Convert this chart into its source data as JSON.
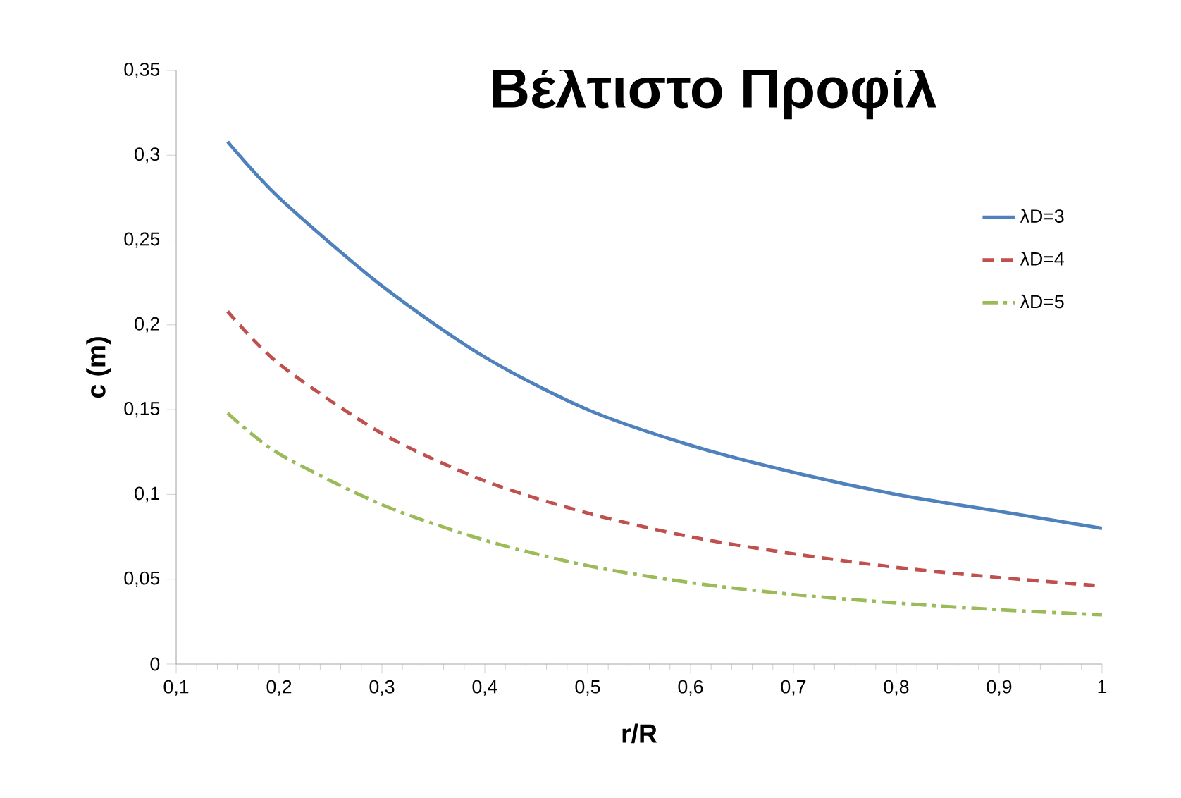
{
  "chart_data": {
    "type": "line",
    "title": "Βέλτιστο Προφίλ",
    "xlabel": "r/R",
    "ylabel": "c (m)",
    "x": [
      0.15,
      0.2,
      0.3,
      0.4,
      0.5,
      0.6,
      0.7,
      0.8,
      0.9,
      1
    ],
    "series": [
      {
        "name": "λD=3",
        "color": "#4f81bd",
        "line_style": "solid",
        "values": [
          0.308,
          0.275,
          0.223,
          0.181,
          0.15,
          0.129,
          0.113,
          0.1,
          0.09,
          0.08
        ]
      },
      {
        "name": "λD=4",
        "color": "#c0504d",
        "line_style": "dashed",
        "values": [
          0.208,
          0.177,
          0.136,
          0.108,
          0.089,
          0.075,
          0.065,
          0.057,
          0.051,
          0.046
        ]
      },
      {
        "name": "λD=5",
        "color": "#9bbb59",
        "line_style": "dashdot",
        "values": [
          0.148,
          0.124,
          0.094,
          0.073,
          0.058,
          0.048,
          0.041,
          0.036,
          0.032,
          0.029
        ]
      }
    ],
    "xlim": [
      0.1,
      1
    ],
    "ylim": [
      0,
      0.35
    ],
    "xticks": [
      {
        "value": 0.1,
        "label": "0,1"
      },
      {
        "value": 0.2,
        "label": "0,2"
      },
      {
        "value": 0.3,
        "label": "0,3"
      },
      {
        "value": 0.4,
        "label": "0,4"
      },
      {
        "value": 0.5,
        "label": "0,5"
      },
      {
        "value": 0.6,
        "label": "0,6"
      },
      {
        "value": 0.7,
        "label": "0,7"
      },
      {
        "value": 0.8,
        "label": "0,8"
      },
      {
        "value": 0.9,
        "label": "0,9"
      },
      1
    ],
    "yticks": [
      0,
      {
        "value": 0.05,
        "label": "0,05"
      },
      {
        "value": 0.1,
        "label": "0,1"
      },
      {
        "value": 0.15,
        "label": "0,15"
      },
      {
        "value": 0.2,
        "label": "0,2"
      },
      {
        "value": 0.25,
        "label": "0,25"
      },
      {
        "value": 0.3,
        "label": "0,3"
      },
      {
        "value": 0.35,
        "label": "0,35"
      }
    ],
    "legend": "top right",
    "grid": false,
    "marker": "none"
  }
}
